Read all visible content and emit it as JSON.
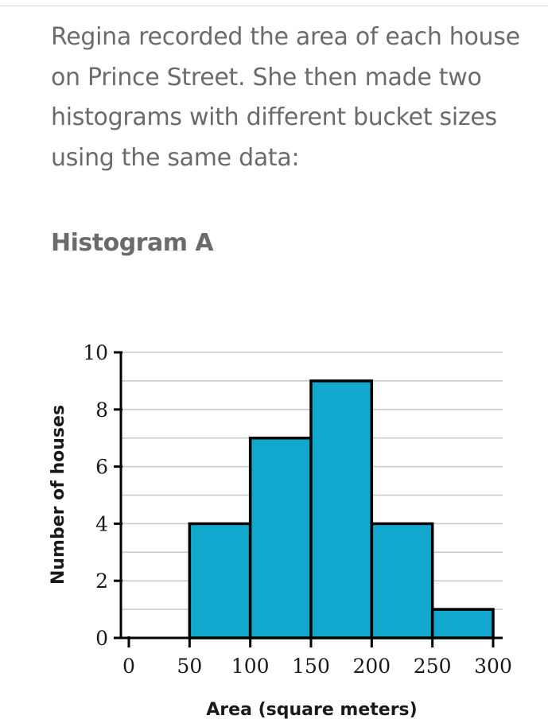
{
  "question_text": "Regina recorded the area of each house on Prince Street. She then made two histograms with different bucket sizes using the same data:",
  "histogram_title": "Histogram A",
  "colors": {
    "bar_fill": "#12a8cd",
    "bar_stroke": "#000000",
    "grid": "#c8c8c8",
    "text": "#6b6b6b"
  },
  "chart_data": {
    "type": "bar",
    "title": "",
    "xlabel": "Area (square meters)",
    "ylabel": "Number of houses",
    "bins": [
      {
        "from": 0,
        "to": 50,
        "count": 0
      },
      {
        "from": 50,
        "to": 100,
        "count": 4
      },
      {
        "from": 100,
        "to": 150,
        "count": 7
      },
      {
        "from": 150,
        "to": 200,
        "count": 9
      },
      {
        "from": 200,
        "to": 250,
        "count": 4
      },
      {
        "from": 250,
        "to": 300,
        "count": 1
      }
    ],
    "xticks": [
      0,
      50,
      100,
      150,
      200,
      250,
      300
    ],
    "yticks": [
      0,
      2,
      4,
      6,
      8,
      10
    ],
    "xlim": [
      0,
      300
    ],
    "ylim": [
      0,
      10
    ],
    "grid": true
  }
}
